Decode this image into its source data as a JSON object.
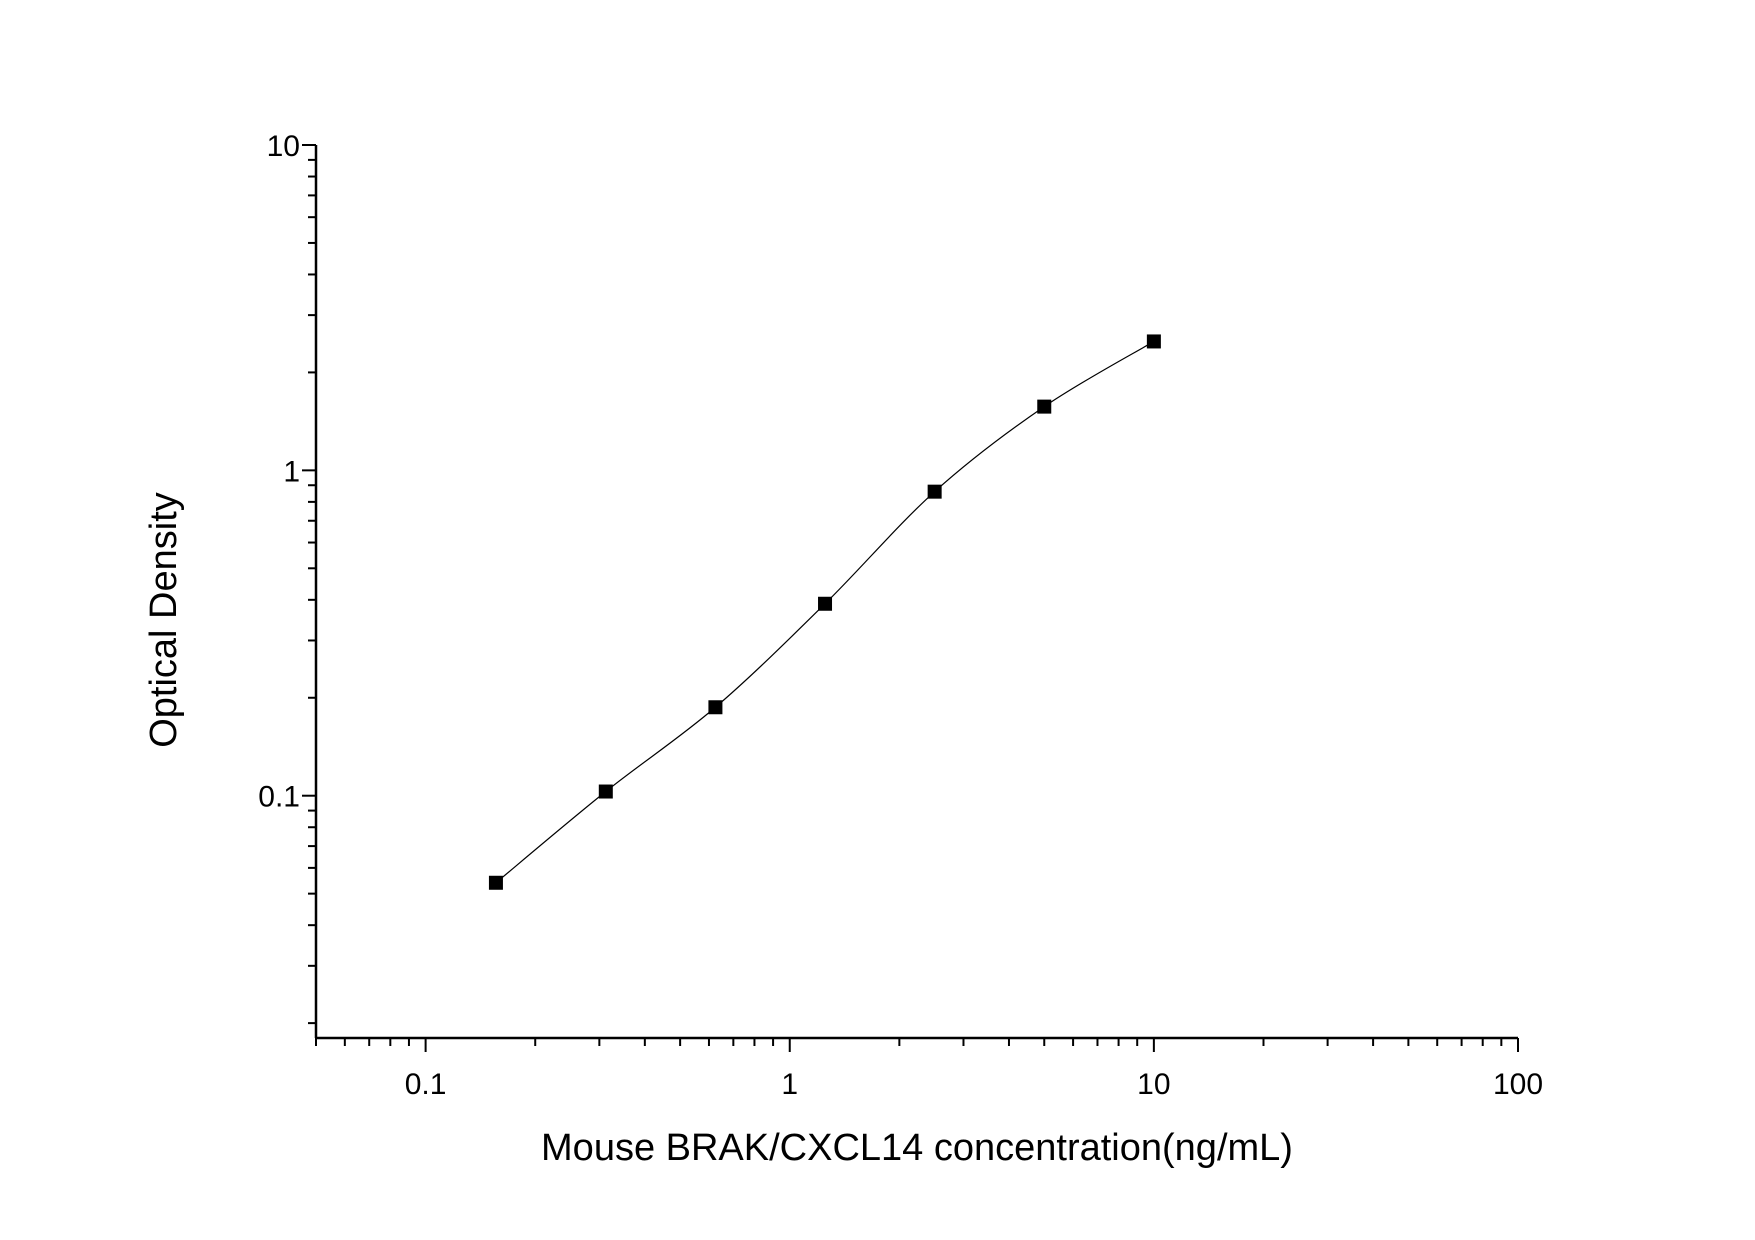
{
  "chart_data": {
    "type": "scatter",
    "title": "",
    "xlabel": "Mouse BRAK/CXCL14 concentration(ng/mL)",
    "ylabel": "Optical Density",
    "xscale": "log",
    "yscale": "log",
    "xlim": [
      0.05,
      100
    ],
    "ylim": [
      0.018,
      10
    ],
    "x_ticks": [
      0.1,
      1,
      10,
      100
    ],
    "x_tick_labels": [
      "0.1",
      "1",
      "10",
      "100"
    ],
    "y_ticks": [
      0.1,
      1,
      10
    ],
    "y_tick_labels": [
      "0.1",
      "1",
      "10"
    ],
    "grid": false,
    "legend": "none",
    "marker": "square",
    "fit_curve": true,
    "series": [
      {
        "x": [
          0.156,
          0.3125,
          0.625,
          1.25,
          2.5,
          5,
          10
        ],
        "y": [
          0.054,
          0.103,
          0.187,
          0.389,
          0.86,
          1.57,
          2.49
        ]
      }
    ],
    "color": "#000000"
  }
}
